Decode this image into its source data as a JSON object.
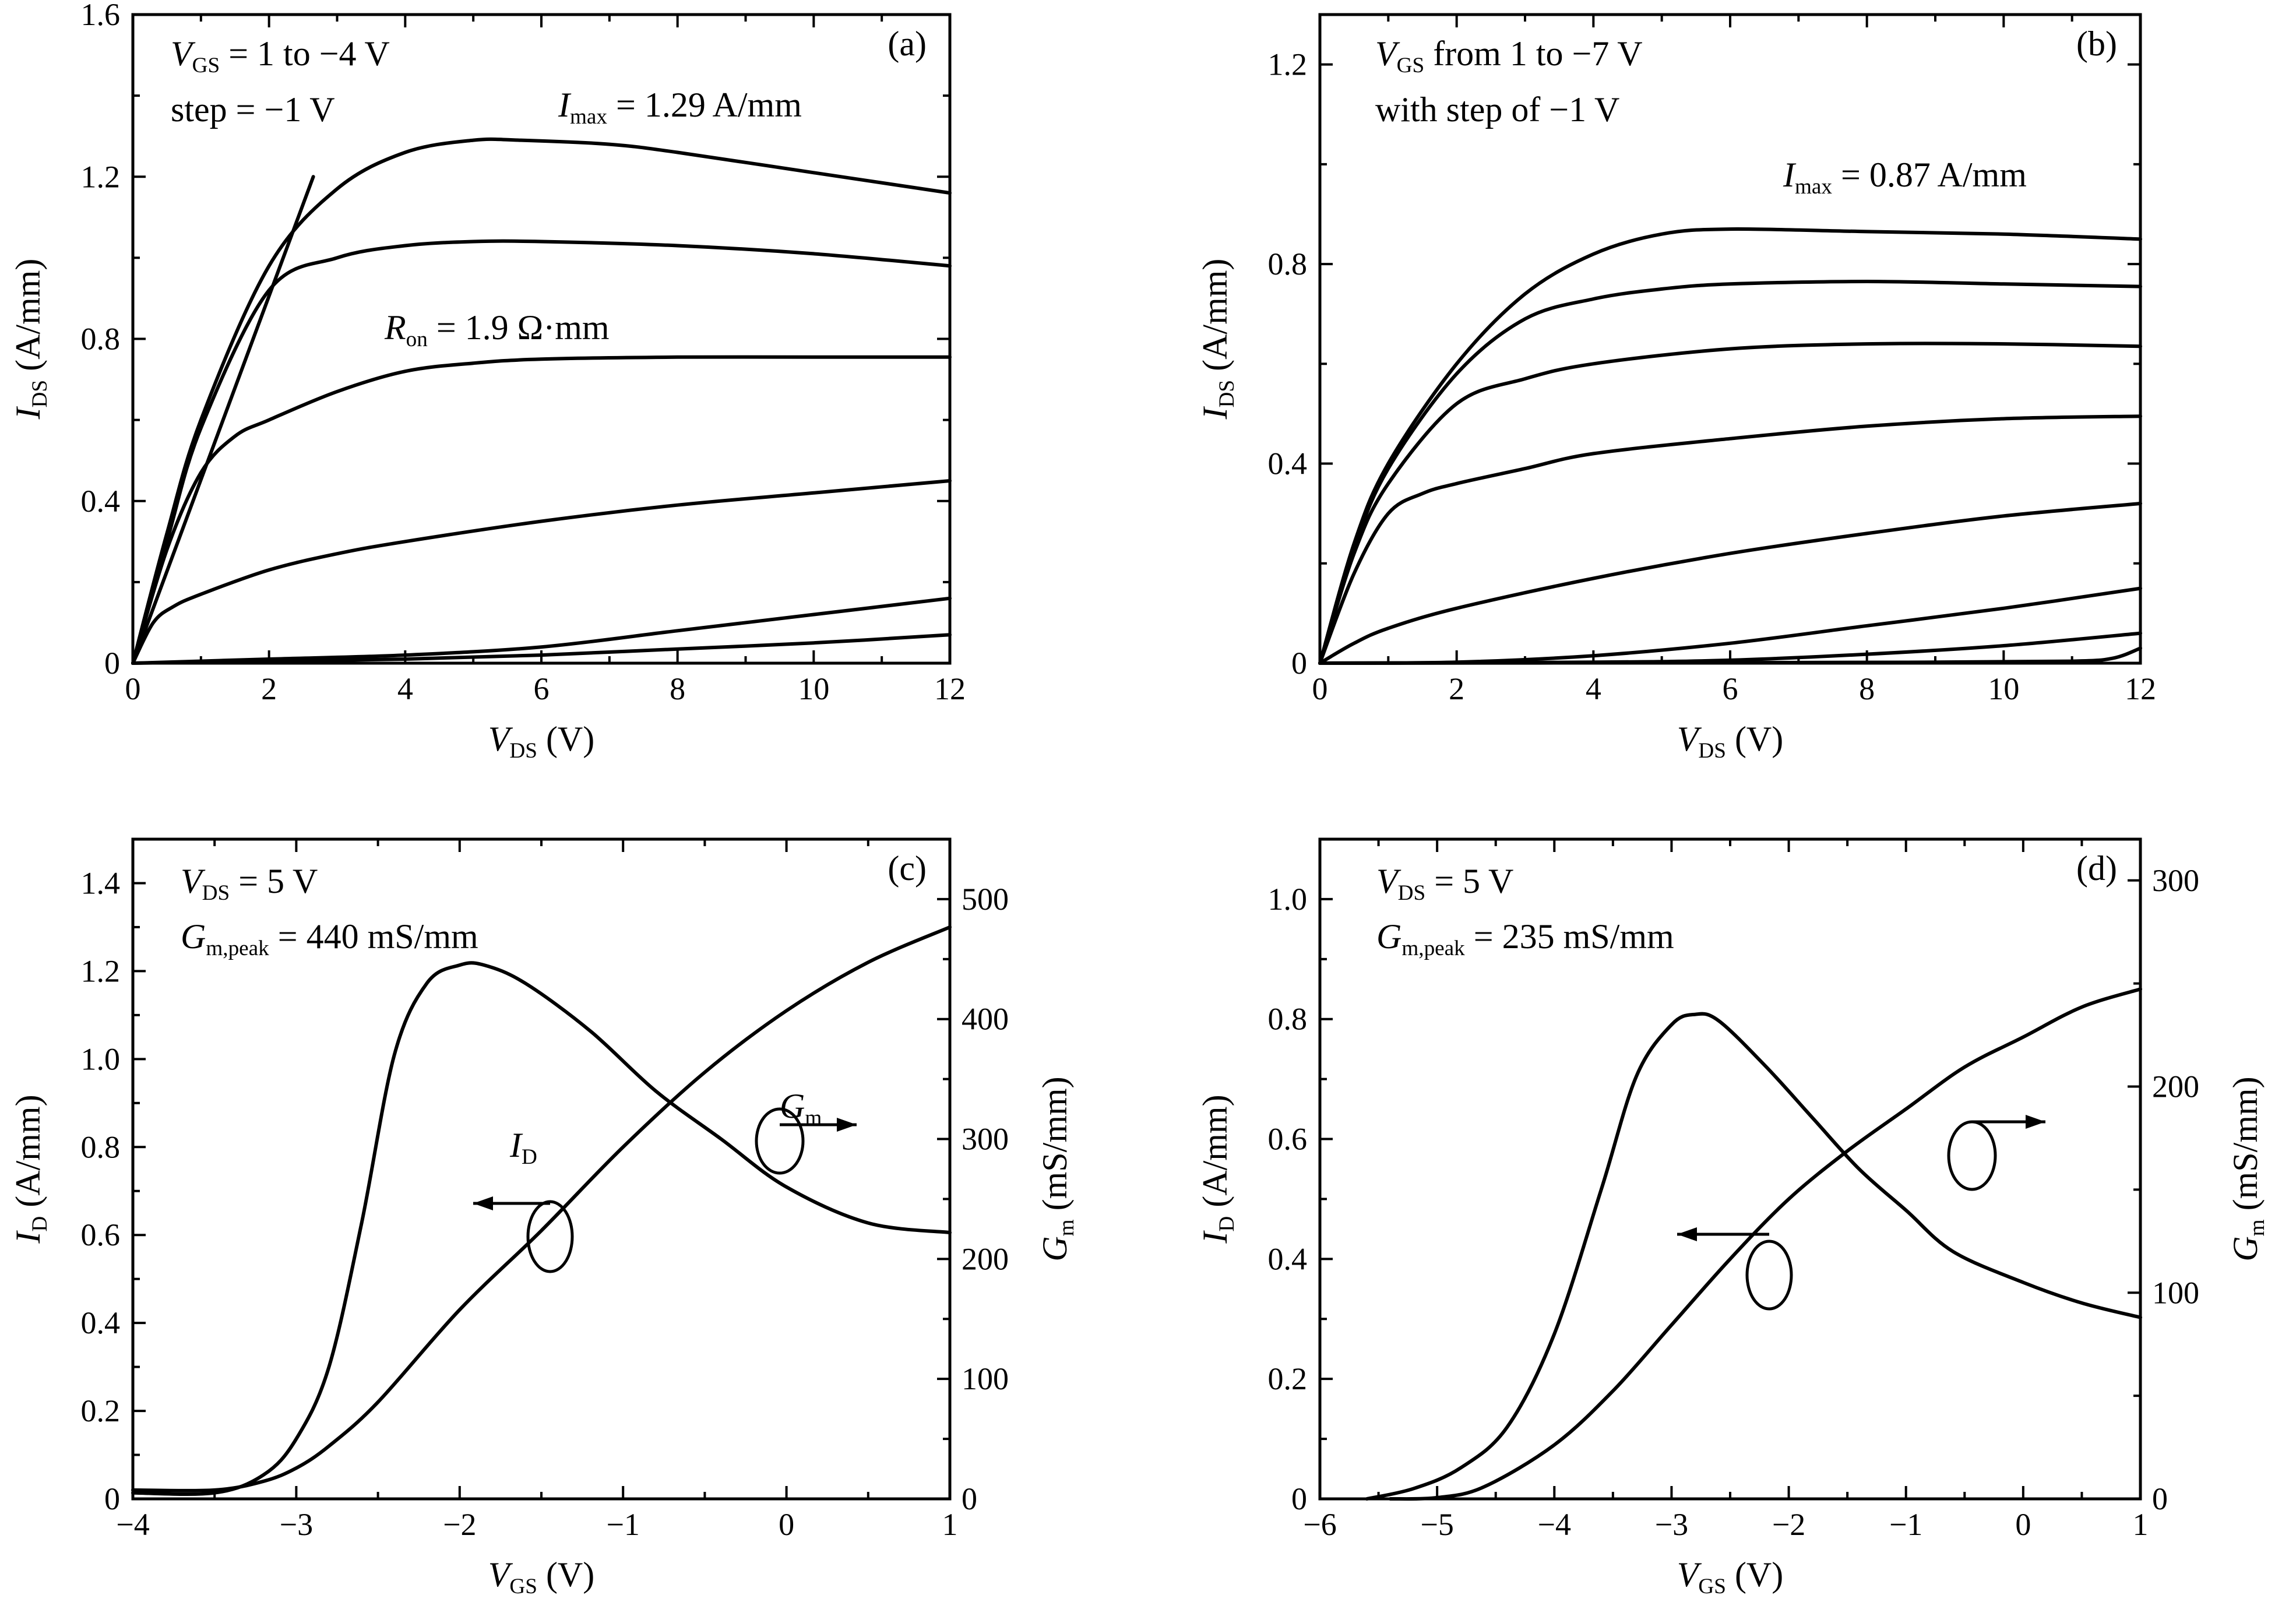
{
  "chart_data": [
    {
      "panel": "(a)",
      "type": "line",
      "xlabel": {
        "main": "V",
        "sub": "DS",
        "rest": " (V)"
      },
      "ylabel": {
        "main": "I",
        "sub": "DS",
        "rest": " (A/mm)"
      },
      "xlim": [
        0,
        12
      ],
      "ylim": [
        0,
        1.6
      ],
      "xticks": [
        "0",
        "2",
        "4",
        "6",
        "8",
        "10",
        "12"
      ],
      "yticks": [
        "0",
        "0.4",
        "0.8",
        "1.2",
        "1.6"
      ],
      "annotations": [
        {
          "segs": [
            [
              "V",
              "i"
            ],
            [
              "GS",
              "sub"
            ],
            [
              " = 1 to −4 V",
              "n"
            ]
          ]
        },
        {
          "segs": [
            [
              "step = −1 V",
              "n"
            ]
          ]
        },
        {
          "segs": [
            [
              "I",
              "i"
            ],
            [
              "max",
              "sub"
            ],
            [
              " = 1.29 A/mm",
              "n"
            ]
          ]
        },
        {
          "segs": [
            [
              "R",
              "i"
            ],
            [
              "on",
              "sub"
            ],
            [
              " = 1.9 Ω·mm",
              "n"
            ]
          ]
        }
      ],
      "series": [
        {
          "x": [
            0,
            0.5,
            1,
            2,
            3,
            4,
            5,
            5.7,
            7,
            8,
            10,
            12
          ],
          "y": [
            0,
            0.32,
            0.6,
            0.98,
            1.17,
            1.26,
            1.29,
            1.29,
            1.28,
            1.26,
            1.21,
            1.16
          ]
        },
        {
          "x": [
            0,
            0.5,
            1,
            2,
            3,
            4,
            5,
            6,
            8,
            10,
            12
          ],
          "y": [
            0,
            0.3,
            0.58,
            0.92,
            1.0,
            1.03,
            1.04,
            1.04,
            1.03,
            1.01,
            0.98
          ]
        },
        {
          "x": [
            0,
            0.5,
            1,
            1.5,
            2,
            3,
            4,
            5,
            6,
            8,
            10,
            12
          ],
          "y": [
            0,
            0.28,
            0.47,
            0.56,
            0.6,
            0.67,
            0.72,
            0.74,
            0.75,
            0.755,
            0.755,
            0.755
          ]
        },
        {
          "x": [
            0,
            0.3,
            0.6,
            1,
            2,
            3,
            4,
            6,
            8,
            10,
            12
          ],
          "y": [
            0,
            0.1,
            0.14,
            0.17,
            0.23,
            0.27,
            0.3,
            0.35,
            0.39,
            0.42,
            0.45
          ]
        },
        {
          "x": [
            0,
            2,
            4,
            6,
            8,
            10,
            12
          ],
          "y": [
            0,
            0.01,
            0.02,
            0.04,
            0.08,
            0.12,
            0.16
          ]
        },
        {
          "x": [
            0,
            2,
            4,
            6,
            8,
            10,
            12
          ],
          "y": [
            0,
            0.005,
            0.01,
            0.02,
            0.035,
            0.05,
            0.07
          ]
        },
        {
          "x": [
            0,
            2.65
          ],
          "y": [
            0,
            1.2
          ]
        }
      ]
    },
    {
      "panel": "(b)",
      "type": "line",
      "xlabel": {
        "main": "V",
        "sub": "DS",
        "rest": " (V)"
      },
      "ylabel": {
        "main": "I",
        "sub": "DS",
        "rest": " (A/mm)"
      },
      "xlim": [
        0,
        12
      ],
      "ylim": [
        0,
        1.3
      ],
      "xticks": [
        "0",
        "2",
        "4",
        "6",
        "8",
        "10",
        "12"
      ],
      "yticks": [
        "0",
        "0.4",
        "0.8",
        "1.2"
      ],
      "annotations": [
        {
          "segs": [
            [
              "V",
              "i"
            ],
            [
              "GS",
              "sub"
            ],
            [
              " from 1 to −7 V",
              "n"
            ]
          ]
        },
        {
          "segs": [
            [
              "with step of −1 V",
              "n"
            ]
          ]
        },
        {
          "segs": [
            [
              "I",
              "i"
            ],
            [
              "max",
              "sub"
            ],
            [
              " = 0.87 A/mm",
              "n"
            ]
          ]
        }
      ],
      "series": [
        {
          "x": [
            0,
            0.5,
            1,
            2,
            3,
            4,
            5,
            6,
            8,
            10,
            12
          ],
          "y": [
            0,
            0.24,
            0.4,
            0.6,
            0.74,
            0.82,
            0.86,
            0.87,
            0.865,
            0.86,
            0.85
          ]
        },
        {
          "x": [
            0,
            0.5,
            1,
            2,
            3,
            4,
            5,
            6,
            8,
            10,
            12
          ],
          "y": [
            0,
            0.23,
            0.39,
            0.58,
            0.69,
            0.73,
            0.75,
            0.76,
            0.765,
            0.76,
            0.755
          ]
        },
        {
          "x": [
            0,
            0.5,
            1,
            2,
            3,
            4,
            6,
            8,
            10,
            12
          ],
          "y": [
            0,
            0.22,
            0.36,
            0.52,
            0.57,
            0.6,
            0.63,
            0.64,
            0.64,
            0.635
          ]
        },
        {
          "x": [
            0,
            0.5,
            1,
            1.5,
            2,
            3,
            4,
            6,
            8,
            10,
            12
          ],
          "y": [
            0,
            0.18,
            0.3,
            0.34,
            0.36,
            0.39,
            0.42,
            0.45,
            0.475,
            0.49,
            0.495
          ]
        },
        {
          "x": [
            0,
            0.5,
            1,
            2,
            4,
            6,
            8,
            10,
            12
          ],
          "y": [
            0,
            0.04,
            0.07,
            0.11,
            0.17,
            0.22,
            0.26,
            0.295,
            0.32
          ]
        },
        {
          "x": [
            0,
            2,
            4,
            6,
            8,
            10,
            12
          ],
          "y": [
            0,
            0.002,
            0.015,
            0.04,
            0.075,
            0.11,
            0.15
          ]
        },
        {
          "x": [
            0,
            4,
            6,
            8,
            10,
            12
          ],
          "y": [
            0,
            0.002,
            0.006,
            0.018,
            0.035,
            0.06
          ]
        },
        {
          "x": [
            0,
            6,
            9,
            11,
            11.6,
            12
          ],
          "y": [
            0,
            0.001,
            0.002,
            0.004,
            0.01,
            0.03
          ]
        }
      ]
    },
    {
      "panel": "(c)",
      "type": "line",
      "xlabel": {
        "main": "V",
        "sub": "GS",
        "rest": " (V)"
      },
      "ylabel": {
        "main": "I",
        "sub": "D",
        "rest": " (A/mm)"
      },
      "y2label": {
        "main": "G",
        "sub": "m",
        "rest": " (mS/mm)"
      },
      "xlim": [
        -4,
        1
      ],
      "ylim": [
        0,
        1.5
      ],
      "y2lim": [
        0,
        550
      ],
      "xticks": [
        "−4",
        "−3",
        "−2",
        "−1",
        "0",
        "1"
      ],
      "yticks": [
        "0",
        "0.2",
        "0.4",
        "0.6",
        "0.8",
        "1.0",
        "1.2",
        "1.4"
      ],
      "y2ticks": [
        "0",
        "100",
        "200",
        "300",
        "400",
        "500"
      ],
      "annotations": [
        {
          "segs": [
            [
              "V",
              "i"
            ],
            [
              "DS",
              "sub"
            ],
            [
              " = 5 V",
              "n"
            ]
          ]
        },
        {
          "segs": [
            [
              "G",
              "i"
            ],
            [
              "m,peak",
              "sub"
            ],
            [
              " = 440 mS/mm",
              "n"
            ]
          ]
        },
        {
          "segs": [
            [
              "I",
              "i"
            ],
            [
              "D",
              "sub"
            ]
          ]
        },
        {
          "segs": [
            [
              "G",
              "i"
            ],
            [
              "m",
              "sub"
            ]
          ]
        }
      ],
      "series": [
        {
          "name": "I_D",
          "axis": "left",
          "x": [
            -4,
            -3.5,
            -3.2,
            -3,
            -2.8,
            -2.5,
            -2,
            -1.5,
            -1,
            -0.5,
            0,
            0.5,
            1
          ],
          "y": [
            0.02,
            0.02,
            0.04,
            0.07,
            0.12,
            0.22,
            0.43,
            0.61,
            0.8,
            0.97,
            1.11,
            1.22,
            1.3
          ]
        },
        {
          "name": "G_m",
          "axis": "right",
          "x": [
            -4,
            -3.5,
            -3.2,
            -3,
            -2.8,
            -2.6,
            -2.4,
            -2.2,
            -2,
            -1.85,
            -1.6,
            -1.2,
            -0.8,
            -0.4,
            0,
            0.5,
            1
          ],
          "y": [
            5,
            5,
            20,
            50,
            110,
            230,
            370,
            430,
            445,
            445,
            430,
            390,
            340,
            300,
            260,
            230,
            222
          ]
        }
      ]
    },
    {
      "panel": "(d)",
      "type": "line",
      "xlabel": {
        "main": "V",
        "sub": "GS",
        "rest": " (V)"
      },
      "ylabel": {
        "main": "I",
        "sub": "D",
        "rest": " (A/mm)"
      },
      "y2label": {
        "main": "G",
        "sub": "m",
        "rest": " (mS/mm)"
      },
      "xlim": [
        -6,
        1
      ],
      "ylim": [
        0,
        1.1
      ],
      "y2lim": [
        0,
        320
      ],
      "xticks": [
        "−6",
        "−5",
        "−4",
        "−3",
        "−2",
        "−1",
        "0",
        "1"
      ],
      "yticks": [
        "0",
        "0.2",
        "0.4",
        "0.6",
        "0.8",
        "1.0"
      ],
      "y2ticks": [
        "0",
        "100",
        "200",
        "300"
      ],
      "annotations": [
        {
          "segs": [
            [
              "V",
              "i"
            ],
            [
              "DS",
              "sub"
            ],
            [
              " = 5 V",
              "n"
            ]
          ]
        },
        {
          "segs": [
            [
              "G",
              "i"
            ],
            [
              "m,peak",
              "sub"
            ],
            [
              " = 235 mS/mm",
              "n"
            ]
          ]
        }
      ],
      "series": [
        {
          "name": "I_D",
          "axis": "left",
          "x": [
            -5.4,
            -5,
            -4.6,
            -4,
            -3.5,
            -3,
            -2.5,
            -2,
            -1.5,
            -1,
            -0.5,
            0,
            0.5,
            1
          ],
          "y": [
            0,
            0.002,
            0.02,
            0.09,
            0.18,
            0.29,
            0.4,
            0.5,
            0.58,
            0.65,
            0.72,
            0.77,
            0.82,
            0.85
          ]
        },
        {
          "name": "G_m",
          "axis": "right",
          "x": [
            -5.6,
            -5.2,
            -4.8,
            -4.4,
            -4,
            -3.6,
            -3.3,
            -3,
            -2.8,
            -2.6,
            -2.2,
            -1.8,
            -1.4,
            -1,
            -0.6,
            0,
            0.5,
            1
          ],
          "y": [
            0,
            5,
            15,
            35,
            80,
            150,
            205,
            230,
            235,
            232,
            210,
            185,
            160,
            140,
            120,
            105,
            95,
            88
          ]
        }
      ]
    }
  ]
}
